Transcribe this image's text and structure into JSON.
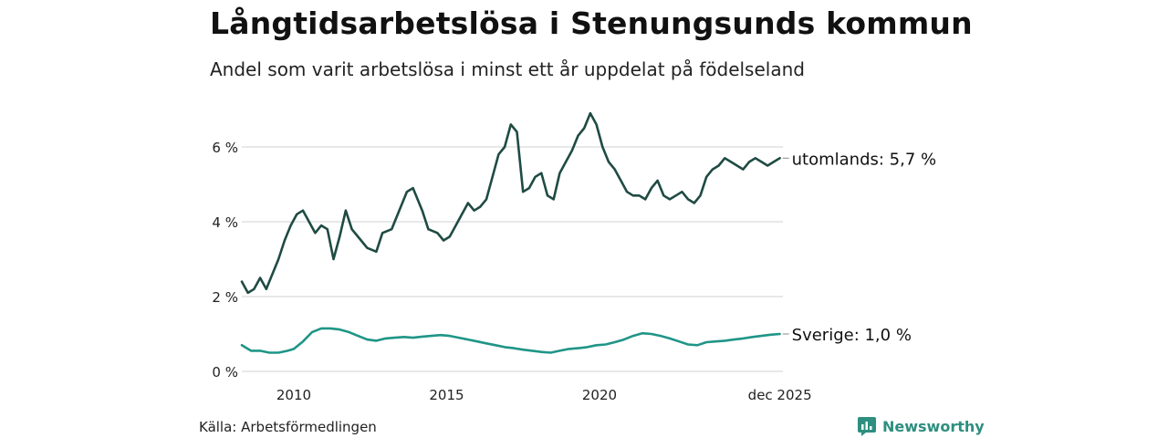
{
  "title": "Långtidsarbetslösa i Stenungsunds kommun",
  "subtitle": "Andel som varit arbetslösa i minst ett år uppdelat på födelseland",
  "source": "Källa: Arbetsförmedlingen",
  "brand": "Newsworthy",
  "colors": {
    "utomlands": "#1f4b43",
    "sverige": "#1f9587",
    "grid": "#d9d9d9",
    "brand": "#2d8f7f"
  },
  "chart_data": {
    "type": "line",
    "title": "Långtidsarbetslösa i Stenungsunds kommun",
    "ylim": [
      0,
      7
    ],
    "xlim": [
      2008.3,
      2026.0
    ],
    "y_ticks": [
      0,
      2,
      4,
      6
    ],
    "y_tick_labels": [
      "0 %",
      "2 %",
      "4 %",
      "6 %"
    ],
    "x_ticks": [
      2010,
      2015,
      2020,
      2025.9
    ],
    "x_tick_labels": [
      "2010",
      "2015",
      "2020",
      "dec 2025"
    ],
    "series": [
      {
        "name": "utomlands",
        "label": "utomlands: 5,7 %",
        "x": [
          2008.3,
          2008.5,
          2008.7,
          2008.9,
          2009.1,
          2009.3,
          2009.5,
          2009.7,
          2009.9,
          2010.1,
          2010.3,
          2010.5,
          2010.7,
          2010.9,
          2011.1,
          2011.3,
          2011.5,
          2011.7,
          2011.9,
          2012.2,
          2012.4,
          2012.7,
          2012.9,
          2013.2,
          2013.4,
          2013.7,
          2013.9,
          2014.2,
          2014.4,
          2014.7,
          2014.9,
          2015.1,
          2015.3,
          2015.5,
          2015.7,
          2015.9,
          2016.1,
          2016.3,
          2016.5,
          2016.7,
          2016.9,
          2017.1,
          2017.3,
          2017.5,
          2017.7,
          2017.9,
          2018.1,
          2018.3,
          2018.5,
          2018.7,
          2018.9,
          2019.1,
          2019.3,
          2019.5,
          2019.7,
          2019.9,
          2020.1,
          2020.3,
          2020.5,
          2020.7,
          2020.9,
          2021.1,
          2021.3,
          2021.5,
          2021.7,
          2021.9,
          2022.1,
          2022.3,
          2022.5,
          2022.7,
          2022.9,
          2023.1,
          2023.3,
          2023.5,
          2023.7,
          2023.9,
          2024.1,
          2024.3,
          2024.5,
          2024.7,
          2024.9,
          2025.1,
          2025.3,
          2025.5,
          2025.7,
          2025.9
        ],
        "values": [
          2.4,
          2.1,
          2.2,
          2.5,
          2.2,
          2.6,
          3.0,
          3.5,
          3.9,
          4.2,
          4.3,
          4.0,
          3.7,
          3.9,
          3.8,
          3.0,
          3.6,
          4.3,
          3.8,
          3.5,
          3.3,
          3.2,
          3.7,
          3.8,
          4.2,
          4.8,
          4.9,
          4.3,
          3.8,
          3.7,
          3.5,
          3.6,
          3.9,
          4.2,
          4.5,
          4.3,
          4.4,
          4.6,
          5.2,
          5.8,
          6.0,
          6.6,
          6.4,
          4.8,
          4.9,
          5.2,
          5.3,
          4.7,
          4.6,
          5.3,
          5.6,
          5.9,
          6.3,
          6.5,
          6.9,
          6.6,
          6.0,
          5.6,
          5.4,
          5.1,
          4.8,
          4.7,
          4.7,
          4.6,
          4.9,
          5.1,
          4.7,
          4.6,
          4.7,
          4.8,
          4.6,
          4.5,
          4.7,
          5.2,
          5.4,
          5.5,
          5.7,
          5.6,
          5.5,
          5.4,
          5.6,
          5.7,
          5.6,
          5.5,
          5.6,
          5.7
        ]
      },
      {
        "name": "Sverige",
        "label": "Sverige: 1,0 %",
        "x": [
          2008.3,
          2008.6,
          2008.9,
          2009.2,
          2009.5,
          2009.8,
          2010.0,
          2010.3,
          2010.6,
          2010.9,
          2011.2,
          2011.5,
          2011.8,
          2012.1,
          2012.4,
          2012.7,
          2013.0,
          2013.3,
          2013.6,
          2013.9,
          2014.2,
          2014.5,
          2014.8,
          2015.1,
          2015.4,
          2015.7,
          2016.0,
          2016.3,
          2016.6,
          2016.9,
          2017.2,
          2017.5,
          2017.8,
          2018.1,
          2018.4,
          2018.7,
          2019.0,
          2019.3,
          2019.6,
          2019.9,
          2020.2,
          2020.5,
          2020.8,
          2021.1,
          2021.4,
          2021.7,
          2022.0,
          2022.3,
          2022.6,
          2022.9,
          2023.2,
          2023.5,
          2023.8,
          2024.1,
          2024.4,
          2024.7,
          2025.0,
          2025.3,
          2025.6,
          2025.9
        ],
        "values": [
          0.7,
          0.55,
          0.55,
          0.5,
          0.5,
          0.55,
          0.6,
          0.8,
          1.05,
          1.15,
          1.15,
          1.12,
          1.05,
          0.95,
          0.85,
          0.82,
          0.88,
          0.9,
          0.92,
          0.9,
          0.93,
          0.95,
          0.97,
          0.95,
          0.9,
          0.85,
          0.8,
          0.75,
          0.7,
          0.65,
          0.62,
          0.58,
          0.55,
          0.52,
          0.5,
          0.55,
          0.6,
          0.62,
          0.65,
          0.7,
          0.72,
          0.78,
          0.85,
          0.95,
          1.02,
          1.0,
          0.95,
          0.88,
          0.8,
          0.72,
          0.7,
          0.78,
          0.8,
          0.82,
          0.85,
          0.88,
          0.92,
          0.95,
          0.98,
          1.0
        ]
      }
    ]
  }
}
